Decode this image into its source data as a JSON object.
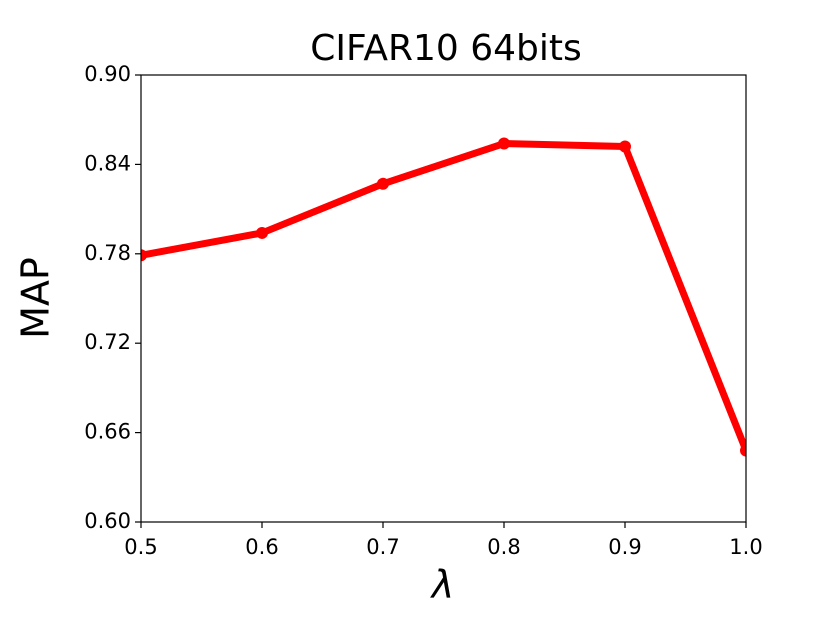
{
  "chart_data": {
    "type": "line",
    "title": "CIFAR10 64bits",
    "xlabel": "λ",
    "ylabel": "MAP",
    "x": [
      0.5,
      0.6,
      0.7,
      0.8,
      0.9,
      1.0
    ],
    "series": [
      {
        "name": "MAP",
        "color": "#ff0000",
        "values": [
          0.779,
          0.794,
          0.827,
          0.854,
          0.852,
          0.648
        ]
      }
    ],
    "xlim": [
      0.5,
      1.0
    ],
    "xticks": [
      0.5,
      0.6,
      0.7,
      0.8,
      0.9,
      {
        "value": 1.0,
        "label": "1.0"
      }
    ],
    "ylim": [
      0.6,
      0.9
    ],
    "yticks": [
      {
        "value": 0.6,
        "label": "0.60"
      },
      {
        "value": 0.66,
        "label": "0.66"
      },
      {
        "value": 0.72,
        "label": "0.72"
      },
      {
        "value": 0.78,
        "label": "0.78"
      },
      {
        "value": 0.84,
        "label": "0.84"
      },
      {
        "value": 0.9,
        "label": "0.90"
      }
    ],
    "grid": false,
    "legend": false
  }
}
